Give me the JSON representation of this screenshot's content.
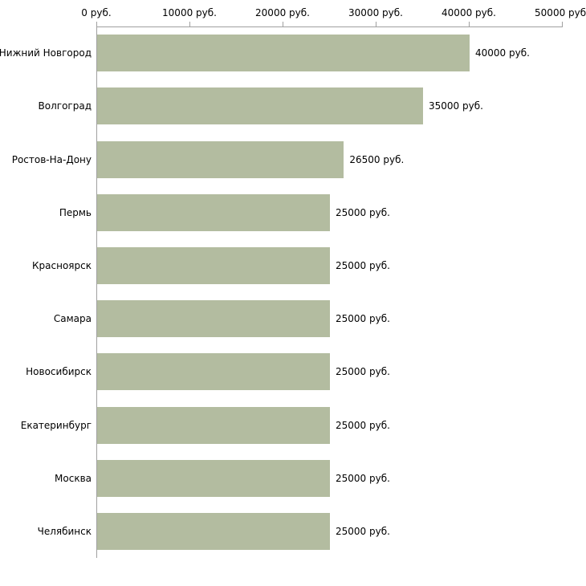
{
  "chart_data": {
    "type": "bar",
    "orientation": "horizontal",
    "title": "",
    "xlabel": "",
    "ylabel": "",
    "categories": [
      "Нижний Новгород",
      "Волгоград",
      "Ростов-На-Дону",
      "Пермь",
      "Красноярск",
      "Самара",
      "Новосибирск",
      "Екатеринбург",
      "Москва",
      "Челябинск"
    ],
    "values": [
      40000,
      35000,
      26500,
      25000,
      25000,
      25000,
      25000,
      25000,
      25000,
      25000
    ],
    "value_labels": [
      "40000 руб.",
      "35000 руб.",
      "26500 руб.",
      "25000 руб.",
      "25000 руб.",
      "25000 руб.",
      "25000 руб.",
      "25000 руб.",
      "25000 руб.",
      "25000 руб."
    ],
    "x_ticks": [
      0,
      10000,
      20000,
      30000,
      40000,
      50000
    ],
    "x_tick_labels": [
      "0 руб.",
      "10000 руб.",
      "20000 руб.",
      "30000 руб.",
      "40000 руб.",
      "50000 руб."
    ],
    "xlim": [
      0,
      50000
    ],
    "grid": false,
    "legend": null,
    "colors": {
      "bar": "#b3bca0",
      "axis": "#a0a0a0",
      "text": "#000000",
      "background": "#ffffff"
    }
  }
}
